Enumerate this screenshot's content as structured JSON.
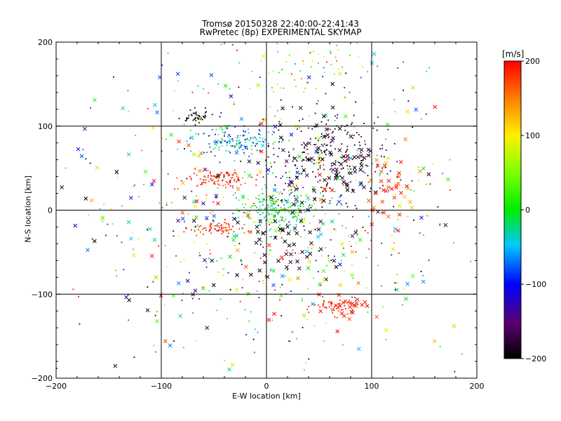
{
  "chart_data": {
    "type": "scatter",
    "title": "Tromsø 20150328 22:40:00-22:41:43",
    "subtitle": "RwPretec (8p) EXPERIMENTAL SKYMAP",
    "xlabel": "E-W location [km]",
    "ylabel": "N-S location [km]",
    "xlim": [
      -200,
      200
    ],
    "ylim": [
      -200,
      200
    ],
    "xticks": [
      -200,
      -100,
      0,
      100,
      200
    ],
    "yticks": [
      -200,
      -100,
      0,
      100,
      200
    ],
    "grid": true,
    "colorbar": {
      "label": "[m/s]",
      "range": [
        -200,
        200
      ],
      "ticks": [
        200,
        100,
        0,
        -100,
        -200
      ]
    },
    "clusters": [
      {
        "cx": 10,
        "cy": 0,
        "sx": 18,
        "sy": 12,
        "n": 260,
        "v": 0,
        "vs": 50,
        "kind": "dot"
      },
      {
        "cx": -48,
        "cy": 38,
        "sx": 16,
        "sy": 5,
        "n": 110,
        "v": 185,
        "vs": 15,
        "kind": "dot"
      },
      {
        "cx": -30,
        "cy": 82,
        "sx": 22,
        "sy": 8,
        "n": 150,
        "v": -60,
        "vs": 40,
        "kind": "dot"
      },
      {
        "cx": 60,
        "cy": 65,
        "sx": 30,
        "sy": 28,
        "n": 220,
        "v": -190,
        "vs": 15,
        "kind": "dot"
      },
      {
        "cx": -50,
        "cy": -22,
        "sx": 12,
        "sy": 4,
        "n": 70,
        "v": 190,
        "vs": 10,
        "kind": "dot"
      },
      {
        "cx": 65,
        "cy": -115,
        "sx": 10,
        "sy": 5,
        "n": 50,
        "v": 190,
        "vs": 10,
        "kind": "dot"
      },
      {
        "cx": -65,
        "cy": 110,
        "sx": 8,
        "sy": 4,
        "n": 45,
        "v": -195,
        "vs": 5,
        "kind": "dot"
      },
      {
        "cx": 40,
        "cy": 170,
        "sx": 25,
        "sy": 20,
        "n": 60,
        "v": 60,
        "vs": 80,
        "kind": "dot"
      },
      {
        "cx": 0,
        "cy": 0,
        "sx": 95,
        "sy": 95,
        "n": 520,
        "v": 0,
        "vs": 140,
        "kind": "dot"
      },
      {
        "cx": 0,
        "cy": 0,
        "sx": 95,
        "sy": 95,
        "n": 240,
        "v": 0,
        "vs": 140,
        "kind": "x"
      },
      {
        "cx": 60,
        "cy": 60,
        "sx": 25,
        "sy": 25,
        "n": 70,
        "v": -190,
        "vs": 15,
        "kind": "x"
      },
      {
        "cx": 20,
        "cy": -40,
        "sx": 20,
        "sy": 20,
        "n": 40,
        "v": -190,
        "vs": 15,
        "kind": "x"
      },
      {
        "cx": 80,
        "cy": -115,
        "sx": 10,
        "sy": 6,
        "n": 20,
        "v": 190,
        "vs": 10,
        "kind": "x"
      },
      {
        "cx": 120,
        "cy": 30,
        "sx": 15,
        "sy": 20,
        "n": 35,
        "v": 180,
        "vs": 25,
        "kind": "x"
      }
    ]
  }
}
